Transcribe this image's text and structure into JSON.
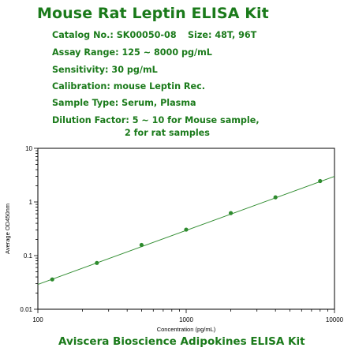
{
  "header": {
    "title": "Mouse Rat Leptin ELISA Kit",
    "catalog": "Catalog No.: SK00050-08",
    "size": "Size: 48T, 96T",
    "assay_range": "Assay Range: 125 ~ 8000 pg/mL",
    "sensitivity": "Sensitivity: 30 pg/mL",
    "calibration": "Calibration: mouse Leptin Rec.",
    "sample_type": "Sample Type: Serum, Plasma",
    "dilution_line1": "Dilution Factor: 5 ~ 10 for Mouse sample,",
    "dilution_line2": "2 for rat samples"
  },
  "footer": {
    "text": "Aviscera Bioscience Adipokines ELISA Kit"
  },
  "colors": {
    "text_green": "#1a7a1a",
    "series_green": "#2e8b2e",
    "axis": "#000000"
  },
  "chart_data": {
    "type": "scatter",
    "title": "",
    "xlabel": "Concentration (pg/mL)",
    "ylabel": "Average OD450nm",
    "x_scale": "log",
    "y_scale": "log",
    "xlim": [
      100,
      10000
    ],
    "ylim": [
      0.01,
      10
    ],
    "x_ticks": [
      "100",
      "1000",
      "10000"
    ],
    "y_ticks": [
      "0.01",
      "0.1",
      "1",
      "10"
    ],
    "grid": false,
    "legend": "none",
    "series": [
      {
        "x": [
          125,
          250,
          500,
          1000,
          2000,
          4000,
          8000
        ],
        "y": [
          0.036,
          0.073,
          0.158,
          0.305,
          0.62,
          1.22,
          2.45
        ]
      }
    ],
    "fit_line": {
      "x": [
        100,
        10000
      ],
      "y": [
        0.029,
        3.0
      ]
    }
  }
}
